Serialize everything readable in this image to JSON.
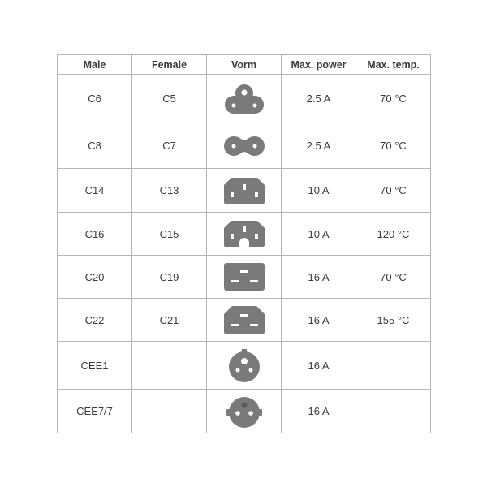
{
  "headers": [
    "Male",
    "Female",
    "Vorm",
    "Max. power",
    "Max. temp."
  ],
  "icon_color": "#7a7a7a",
  "rows": [
    {
      "male": "C6",
      "female": "C5",
      "shape": "c5-cloverleaf-icon",
      "power": "2.5 A",
      "temp": "70 °C"
    },
    {
      "male": "C8",
      "female": "C7",
      "shape": "c7-figure-eight-icon",
      "power": "2.5 A",
      "temp": "70 °C"
    },
    {
      "male": "C14",
      "female": "C13",
      "shape": "c13-connector-icon",
      "power": "10 A",
      "temp": "70 °C"
    },
    {
      "male": "C16",
      "female": "C15",
      "shape": "c15-connector-icon",
      "power": "10 A",
      "temp": "120 °C"
    },
    {
      "male": "C20",
      "female": "C19",
      "shape": "c19-connector-icon",
      "power": "16 A",
      "temp": "70 °C"
    },
    {
      "male": "C22",
      "female": "C21",
      "shape": "c21-connector-icon",
      "power": "16 A",
      "temp": "155 °C"
    },
    {
      "male": "CEE1",
      "female": "",
      "shape": "cee1-plug-icon",
      "power": "16 A",
      "temp": ""
    },
    {
      "male": "CEE7/7",
      "female": "",
      "shape": "cee7-schuko-icon",
      "power": "16 A",
      "temp": ""
    }
  ]
}
